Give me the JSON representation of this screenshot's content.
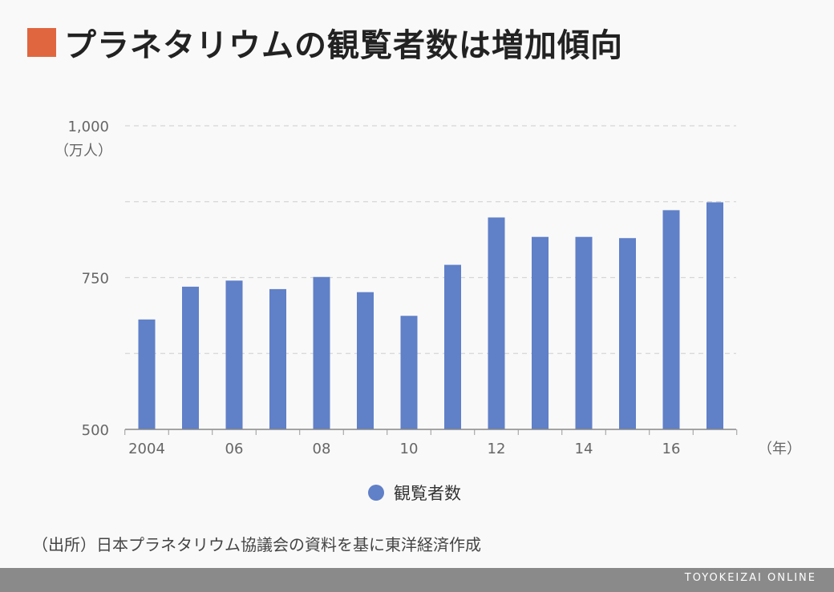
{
  "title": "プラネタリウムの観覧者数は増加傾向",
  "colors": {
    "accent": "#e0663f",
    "bar": "#6080c8",
    "footer": "#8a8a8a"
  },
  "chart_data": {
    "type": "bar",
    "x": [
      2004,
      2005,
      2006,
      2007,
      2008,
      2009,
      2010,
      2011,
      2012,
      2013,
      2014,
      2015,
      2016,
      2017
    ],
    "series": [
      {
        "name": "観覧者数",
        "values": [
          681,
          735,
          745,
          731,
          751,
          726,
          687,
          771,
          849,
          817,
          817,
          815,
          861,
          874
        ]
      }
    ],
    "ylim": [
      500,
      1000
    ],
    "y_ticks": [
      {
        "value": 500,
        "label": "500"
      },
      {
        "value": 750,
        "label": "750"
      },
      {
        "value": 1000,
        "label": "1,000"
      }
    ],
    "y_gridlines": [
      625,
      875,
      1000
    ],
    "x_tick_labels": [
      {
        "x": 2004,
        "label": "2004"
      },
      {
        "x": 2006,
        "label": "06"
      },
      {
        "x": 2008,
        "label": "08"
      },
      {
        "x": 2010,
        "label": "10"
      },
      {
        "x": 2012,
        "label": "12"
      },
      {
        "x": 2014,
        "label": "14"
      },
      {
        "x": 2016,
        "label": "16"
      }
    ],
    "ylabel": "（万人）",
    "xlabel": "（年）",
    "grid": true,
    "legend": "bottom"
  },
  "legend": {
    "label": "観覧者数"
  },
  "source": "（出所）日本プラネタリウム協議会の資料を基に東洋経済作成",
  "footer": {
    "brand": "TOYOKEIZAI ONLINE"
  }
}
